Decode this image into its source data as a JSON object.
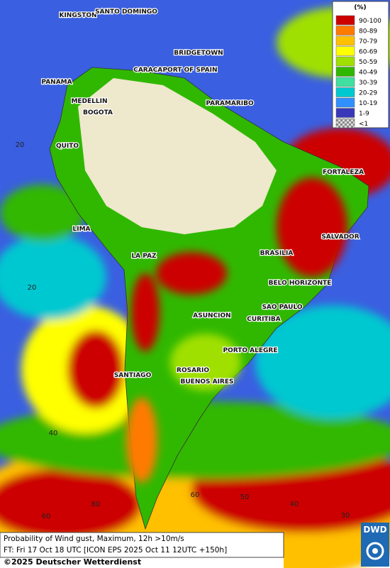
{
  "legend": {
    "title": "(%)",
    "items": [
      {
        "label": "90-100",
        "color": "#cc0000"
      },
      {
        "label": "80-89",
        "color": "#ff7a00"
      },
      {
        "label": "70-79",
        "color": "#ffc000"
      },
      {
        "label": "60-69",
        "color": "#ffff00"
      },
      {
        "label": "50-59",
        "color": "#a0e000"
      },
      {
        "label": "40-49",
        "color": "#30b800"
      },
      {
        "label": "30-39",
        "color": "#40e0a0"
      },
      {
        "label": "20-29",
        "color": "#00c8d0"
      },
      {
        "label": "10-19",
        "color": "#3090ff"
      },
      {
        "label": "1-9",
        "color": "#3838b8"
      },
      {
        "label": "<1",
        "color": "#b0b0b0"
      }
    ]
  },
  "cities": [
    "KINGSTON",
    "SANTO DOMINGO",
    "BRIDGETOWN",
    "CARACAS",
    "PORT OF SPAIN",
    "PANAMA",
    "MEDELLIN",
    "BOGOTA",
    "PARAMARIBO",
    "QUITO",
    "FORTALEZA",
    "LIMA",
    "SALVADOR",
    "LA PAZ",
    "BRASILIA",
    "BELO HORIZONTE",
    "ASUNCION",
    "SAO PAULO",
    "CURITIBA",
    "PORTO ALEGRE",
    "ROSARIO",
    "SANTIAGO",
    "BUENOS AIRES"
  ],
  "grid_labels": [
    "20",
    "20",
    "40",
    "80",
    "60",
    "50",
    "40",
    "30",
    "60"
  ],
  "caption": {
    "line1": "Probability of Wind gust, Maximum, 12h >10m/s",
    "line2": "FT: Fri 17 Oct 18 UTC [ICON EPS 2025 Oct 11 12UTC +150h]",
    "copyright": "©2025 Deutscher Wetterdienst"
  },
  "logo": "DWD"
}
